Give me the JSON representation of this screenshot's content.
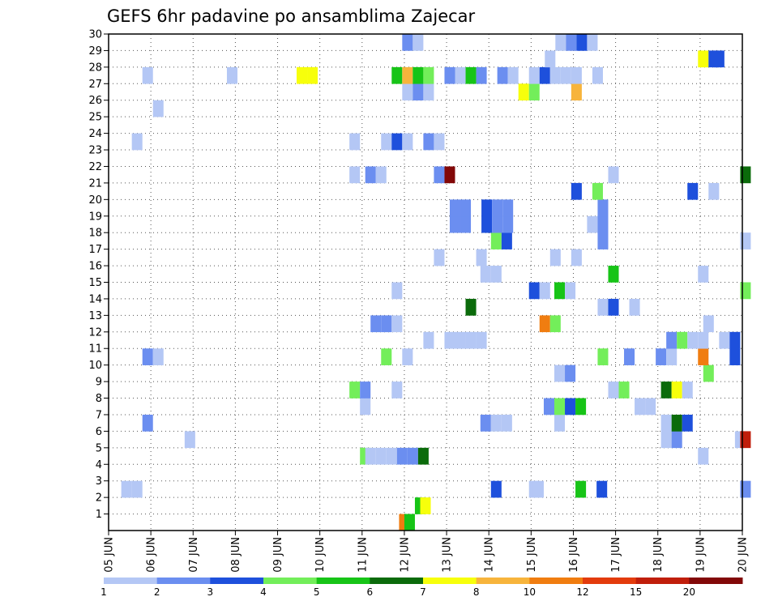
{
  "chart_data": {
    "type": "heatmap",
    "title": "GEFS 6hr padavine po ansamblima Zajecar",
    "xlabel": "",
    "ylabel": "",
    "x_tick_labels": [
      "05 JUN",
      "06 JUN",
      "07 JUN",
      "08 JUN",
      "09 JUN",
      "10 JUN",
      "11 JUN",
      "12 JUN",
      "13 JUN",
      "14 JUN",
      "15 JUN",
      "16 JUN",
      "17 JUN",
      "18 JUN",
      "19 JUN",
      "20 JUN"
    ],
    "y_tick_labels": [
      "1",
      "2",
      "3",
      "4",
      "5",
      "6",
      "7",
      "8",
      "9",
      "10",
      "11",
      "12",
      "13",
      "14",
      "15",
      "16",
      "17",
      "18",
      "19",
      "20",
      "21",
      "22",
      "23",
      "24",
      "25",
      "26",
      "27",
      "28",
      "29",
      "30"
    ],
    "xlim": [
      0,
      60
    ],
    "ylim": [
      0,
      30
    ],
    "grid": true,
    "colorbar": {
      "placement": "bottom",
      "labels": [
        "1",
        "2",
        "3",
        "4",
        "5",
        "6",
        "7",
        "8",
        "10",
        "12",
        "15",
        "20"
      ],
      "colors": [
        "#b4c7f5",
        "#6b8ef0",
        "#1e50dc",
        "#73ee5a",
        "#17c417",
        "#0b6b0b",
        "#f7ff0b",
        "#f7b43c",
        "#f07d10",
        "#e33b0c",
        "#c01e0b",
        "#820808"
      ]
    },
    "units": "x = 6-hour step from 05 JUN 00Z (4 steps per day); y = ensemble member; c = colour class index (0 = 1 .. 11 = 20)",
    "cells": [
      {
        "x": 27.5,
        "y": 0,
        "c": 8
      },
      {
        "x": 28,
        "y": 0,
        "c": 4
      },
      {
        "x": 29,
        "y": 1,
        "c": 4
      },
      {
        "x": 29.5,
        "y": 1,
        "c": 6
      },
      {
        "x": 1.2,
        "y": 2,
        "c": 0
      },
      {
        "x": 2.2,
        "y": 2,
        "c": 0
      },
      {
        "x": 36.2,
        "y": 2,
        "c": 2
      },
      {
        "x": 39.8,
        "y": 2,
        "c": 0
      },
      {
        "x": 40.2,
        "y": 2,
        "c": 0
      },
      {
        "x": 44.2,
        "y": 2,
        "c": 4
      },
      {
        "x": 46.2,
        "y": 2,
        "c": 2
      },
      {
        "x": 59.8,
        "y": 2,
        "c": 1
      },
      {
        "x": 23.8,
        "y": 4,
        "c": 3
      },
      {
        "x": 24.3,
        "y": 4,
        "c": 0
      },
      {
        "x": 25.3,
        "y": 4,
        "c": 0
      },
      {
        "x": 26.3,
        "y": 4,
        "c": 0
      },
      {
        "x": 27.3,
        "y": 4,
        "c": 1
      },
      {
        "x": 28.3,
        "y": 4,
        "c": 1
      },
      {
        "x": 29.3,
        "y": 4,
        "c": 5
      },
      {
        "x": 55.8,
        "y": 4,
        "c": 0
      },
      {
        "x": 7.2,
        "y": 5,
        "c": 0
      },
      {
        "x": 52.3,
        "y": 5,
        "c": 0
      },
      {
        "x": 53.3,
        "y": 5,
        "c": 1
      },
      {
        "x": 59.3,
        "y": 5,
        "c": 0
      },
      {
        "x": 59.8,
        "y": 5,
        "c": 10
      },
      {
        "x": 3.2,
        "y": 6,
        "c": 1
      },
      {
        "x": 35.2,
        "y": 6,
        "c": 1
      },
      {
        "x": 36.2,
        "y": 6,
        "c": 0
      },
      {
        "x": 37.2,
        "y": 6,
        "c": 0
      },
      {
        "x": 42.2,
        "y": 6,
        "c": 0
      },
      {
        "x": 52.3,
        "y": 6,
        "c": 0
      },
      {
        "x": 53.3,
        "y": 6,
        "c": 5
      },
      {
        "x": 54.3,
        "y": 6,
        "c": 2
      },
      {
        "x": 23.8,
        "y": 7,
        "c": 0
      },
      {
        "x": 41.2,
        "y": 7,
        "c": 1
      },
      {
        "x": 42.2,
        "y": 7,
        "c": 3
      },
      {
        "x": 43.2,
        "y": 7,
        "c": 2
      },
      {
        "x": 44.2,
        "y": 7,
        "c": 4
      },
      {
        "x": 49.8,
        "y": 7,
        "c": 0
      },
      {
        "x": 50.8,
        "y": 7,
        "c": 0
      },
      {
        "x": 22.8,
        "y": 8,
        "c": 3
      },
      {
        "x": 23.8,
        "y": 8,
        "c": 1
      },
      {
        "x": 26.8,
        "y": 8,
        "c": 0
      },
      {
        "x": 47.3,
        "y": 8,
        "c": 0
      },
      {
        "x": 48.3,
        "y": 8,
        "c": 3
      },
      {
        "x": 52.3,
        "y": 8,
        "c": 5
      },
      {
        "x": 53.3,
        "y": 8,
        "c": 6
      },
      {
        "x": 54.3,
        "y": 8,
        "c": 0
      },
      {
        "x": 42.2,
        "y": 9,
        "c": 0
      },
      {
        "x": 43.2,
        "y": 9,
        "c": 1
      },
      {
        "x": 56.3,
        "y": 9,
        "c": 3
      },
      {
        "x": 3.2,
        "y": 10,
        "c": 1
      },
      {
        "x": 4.2,
        "y": 10,
        "c": 0
      },
      {
        "x": 25.8,
        "y": 10,
        "c": 3
      },
      {
        "x": 27.8,
        "y": 10,
        "c": 0
      },
      {
        "x": 46.3,
        "y": 10,
        "c": 3
      },
      {
        "x": 48.8,
        "y": 10,
        "c": 1
      },
      {
        "x": 51.8,
        "y": 10,
        "c": 1
      },
      {
        "x": 52.8,
        "y": 10,
        "c": 0
      },
      {
        "x": 55.8,
        "y": 10,
        "c": 8
      },
      {
        "x": 58.8,
        "y": 10,
        "c": 2
      },
      {
        "x": 29.8,
        "y": 11,
        "c": 0
      },
      {
        "x": 31.8,
        "y": 11,
        "c": 0
      },
      {
        "x": 32.8,
        "y": 11,
        "c": 0
      },
      {
        "x": 33.8,
        "y": 11,
        "c": 0
      },
      {
        "x": 34.8,
        "y": 11,
        "c": 0
      },
      {
        "x": 52.8,
        "y": 11,
        "c": 1
      },
      {
        "x": 53.8,
        "y": 11,
        "c": 3
      },
      {
        "x": 54.8,
        "y": 11,
        "c": 0
      },
      {
        "x": 55.8,
        "y": 11,
        "c": 0
      },
      {
        "x": 57.8,
        "y": 11,
        "c": 0
      },
      {
        "x": 58.8,
        "y": 11,
        "c": 2
      },
      {
        "x": 24.8,
        "y": 12,
        "c": 1
      },
      {
        "x": 25.8,
        "y": 12,
        "c": 1
      },
      {
        "x": 26.8,
        "y": 12,
        "c": 0
      },
      {
        "x": 40.8,
        "y": 12,
        "c": 8
      },
      {
        "x": 41.8,
        "y": 12,
        "c": 3
      },
      {
        "x": 56.3,
        "y": 12,
        "c": 0
      },
      {
        "x": 33.8,
        "y": 13,
        "c": 5
      },
      {
        "x": 46.3,
        "y": 13,
        "c": 0
      },
      {
        "x": 47.3,
        "y": 13,
        "c": 2
      },
      {
        "x": 49.3,
        "y": 13,
        "c": 0
      },
      {
        "x": 26.8,
        "y": 14,
        "c": 0
      },
      {
        "x": 39.8,
        "y": 14,
        "c": 2
      },
      {
        "x": 40.8,
        "y": 14,
        "c": 0
      },
      {
        "x": 42.2,
        "y": 14,
        "c": 4
      },
      {
        "x": 43.2,
        "y": 14,
        "c": 0
      },
      {
        "x": 59.8,
        "y": 14,
        "c": 3
      },
      {
        "x": 35.2,
        "y": 15,
        "c": 0
      },
      {
        "x": 36.2,
        "y": 15,
        "c": 0
      },
      {
        "x": 47.3,
        "y": 15,
        "c": 4
      },
      {
        "x": 55.8,
        "y": 15,
        "c": 0
      },
      {
        "x": 30.8,
        "y": 16,
        "c": 0
      },
      {
        "x": 34.8,
        "y": 16,
        "c": 0
      },
      {
        "x": 41.8,
        "y": 16,
        "c": 0
      },
      {
        "x": 43.8,
        "y": 16,
        "c": 0
      },
      {
        "x": 36.2,
        "y": 17,
        "c": 3
      },
      {
        "x": 37.2,
        "y": 17,
        "c": 2
      },
      {
        "x": 46.3,
        "y": 17,
        "c": 1
      },
      {
        "x": 59.8,
        "y": 17,
        "c": 0
      },
      {
        "x": 32.3,
        "y": 18,
        "c": 1
      },
      {
        "x": 33.3,
        "y": 18,
        "c": 1
      },
      {
        "x": 35.3,
        "y": 18,
        "c": 2
      },
      {
        "x": 36.3,
        "y": 18,
        "c": 1
      },
      {
        "x": 37.3,
        "y": 18,
        "c": 1
      },
      {
        "x": 45.3,
        "y": 18,
        "c": 0
      },
      {
        "x": 46.3,
        "y": 18,
        "c": 1
      },
      {
        "x": 32.3,
        "y": 19,
        "c": 1
      },
      {
        "x": 33.3,
        "y": 19,
        "c": 1
      },
      {
        "x": 35.3,
        "y": 19,
        "c": 2
      },
      {
        "x": 36.3,
        "y": 19,
        "c": 1
      },
      {
        "x": 37.3,
        "y": 19,
        "c": 1
      },
      {
        "x": 46.3,
        "y": 19,
        "c": 1
      },
      {
        "x": 43.8,
        "y": 20,
        "c": 2
      },
      {
        "x": 45.8,
        "y": 20,
        "c": 3
      },
      {
        "x": 54.8,
        "y": 20,
        "c": 2
      },
      {
        "x": 56.8,
        "y": 20,
        "c": 0
      },
      {
        "x": 22.8,
        "y": 21,
        "c": 0
      },
      {
        "x": 24.3,
        "y": 21,
        "c": 1
      },
      {
        "x": 25.3,
        "y": 21,
        "c": 0
      },
      {
        "x": 30.8,
        "y": 21,
        "c": 1
      },
      {
        "x": 31.8,
        "y": 21,
        "c": 11
      },
      {
        "x": 47.3,
        "y": 21,
        "c": 0
      },
      {
        "x": 59.8,
        "y": 21,
        "c": 5
      },
      {
        "x": 2.2,
        "y": 23,
        "c": 0
      },
      {
        "x": 22.8,
        "y": 23,
        "c": 0
      },
      {
        "x": 25.8,
        "y": 23,
        "c": 0
      },
      {
        "x": 26.8,
        "y": 23,
        "c": 2
      },
      {
        "x": 27.8,
        "y": 23,
        "c": 0
      },
      {
        "x": 29.8,
        "y": 23,
        "c": 1
      },
      {
        "x": 30.8,
        "y": 23,
        "c": 0
      },
      {
        "x": 4.2,
        "y": 25,
        "c": 0
      },
      {
        "x": 27.8,
        "y": 26,
        "c": 0
      },
      {
        "x": 28.8,
        "y": 26,
        "c": 1
      },
      {
        "x": 29.8,
        "y": 26,
        "c": 0
      },
      {
        "x": 38.8,
        "y": 26,
        "c": 6
      },
      {
        "x": 39.8,
        "y": 26,
        "c": 3
      },
      {
        "x": 43.8,
        "y": 26,
        "c": 7
      },
      {
        "x": 3.2,
        "y": 27,
        "c": 0
      },
      {
        "x": 11.2,
        "y": 27,
        "c": 0
      },
      {
        "x": 17.8,
        "y": 27,
        "c": 6
      },
      {
        "x": 18.8,
        "y": 27,
        "c": 6
      },
      {
        "x": 26.8,
        "y": 27,
        "c": 4
      },
      {
        "x": 27.8,
        "y": 27,
        "c": 7
      },
      {
        "x": 28.8,
        "y": 27,
        "c": 4
      },
      {
        "x": 29.8,
        "y": 27,
        "c": 3
      },
      {
        "x": 31.8,
        "y": 27,
        "c": 1
      },
      {
        "x": 32.8,
        "y": 27,
        "c": 0
      },
      {
        "x": 33.8,
        "y": 27,
        "c": 4
      },
      {
        "x": 34.8,
        "y": 27,
        "c": 1
      },
      {
        "x": 36.8,
        "y": 27,
        "c": 1
      },
      {
        "x": 37.8,
        "y": 27,
        "c": 0
      },
      {
        "x": 39.8,
        "y": 27,
        "c": 0
      },
      {
        "x": 40.8,
        "y": 27,
        "c": 2
      },
      {
        "x": 41.8,
        "y": 27,
        "c": 0
      },
      {
        "x": 42.8,
        "y": 27,
        "c": 0
      },
      {
        "x": 43.8,
        "y": 27,
        "c": 0
      },
      {
        "x": 45.8,
        "y": 27,
        "c": 0
      },
      {
        "x": 41.3,
        "y": 28,
        "c": 0
      },
      {
        "x": 55.8,
        "y": 28,
        "c": 6
      },
      {
        "x": 56.8,
        "y": 28,
        "c": 2
      },
      {
        "x": 57.3,
        "y": 28,
        "c": 2
      },
      {
        "x": 27.8,
        "y": 29,
        "c": 1
      },
      {
        "x": 28.8,
        "y": 29,
        "c": 0
      },
      {
        "x": 42.3,
        "y": 29,
        "c": 0
      },
      {
        "x": 43.3,
        "y": 29,
        "c": 1
      },
      {
        "x": 44.3,
        "y": 29,
        "c": 2
      },
      {
        "x": 45.3,
        "y": 29,
        "c": 0
      }
    ]
  }
}
